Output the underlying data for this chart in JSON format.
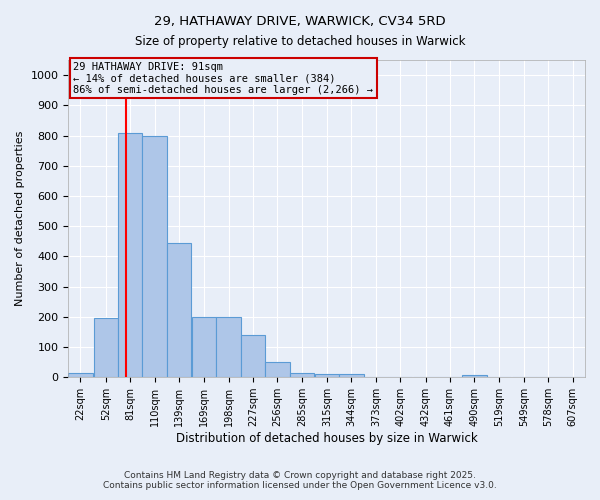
{
  "title_line1": "29, HATHAWAY DRIVE, WARWICK, CV34 5RD",
  "title_line2": "Size of property relative to detached houses in Warwick",
  "xlabel": "Distribution of detached houses by size in Warwick",
  "ylabel": "Number of detached properties",
  "annotation_line1": "29 HATHAWAY DRIVE: 91sqm",
  "annotation_line2": "← 14% of detached houses are smaller (384)",
  "annotation_line3": "86% of semi-detached houses are larger (2,266) →",
  "bar_left_edges": [
    22,
    52,
    81,
    110,
    139,
    169,
    198,
    227,
    256,
    285,
    315,
    344,
    373,
    402,
    432,
    461,
    490,
    519,
    549,
    578,
    607
  ],
  "bar_heights": [
    15,
    195,
    810,
    800,
    445,
    200,
    200,
    140,
    50,
    15,
    12,
    10,
    0,
    0,
    0,
    0,
    8,
    0,
    0,
    0,
    0
  ],
  "bin_width": 29,
  "bar_color": "#aec6e8",
  "bar_edge_color": "#5b9bd5",
  "red_line_x": 91,
  "ylim": [
    0,
    1050
  ],
  "yticks": [
    0,
    100,
    200,
    300,
    400,
    500,
    600,
    700,
    800,
    900,
    1000
  ],
  "background_color": "#e8eef8",
  "grid_color": "#ffffff",
  "annotation_box_color": "#cc0000",
  "footer_line1": "Contains HM Land Registry data © Crown copyright and database right 2025.",
  "footer_line2": "Contains public sector information licensed under the Open Government Licence v3.0."
}
